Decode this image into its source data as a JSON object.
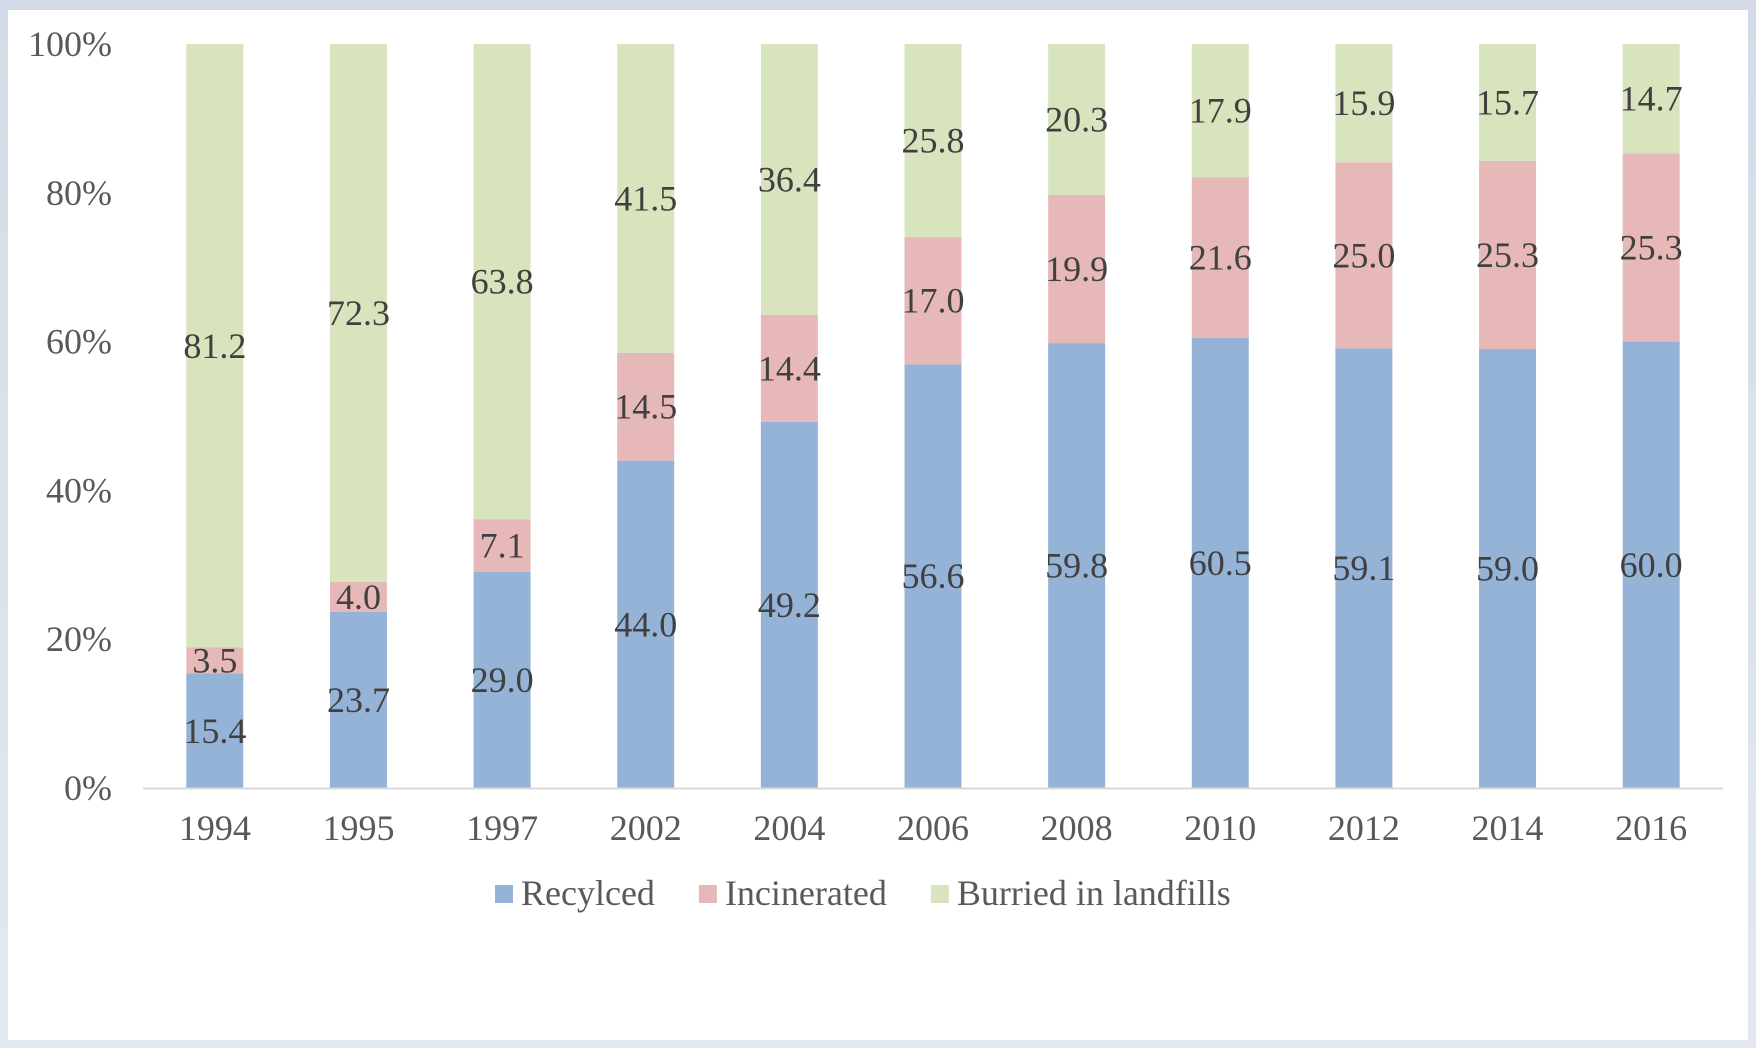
{
  "chart_data": {
    "type": "bar",
    "stacked": true,
    "percent_stacked": true,
    "title": "",
    "xlabel": "",
    "ylabel": "",
    "categories": [
      "1994",
      "1995",
      "1997",
      "2002",
      "2004",
      "2006",
      "2008",
      "2010",
      "2012",
      "2014",
      "2016"
    ],
    "series": [
      {
        "name": "Recylced",
        "color": "#95b3d7",
        "values": [
          15.4,
          23.7,
          29.0,
          44.0,
          49.2,
          56.6,
          59.8,
          60.5,
          59.1,
          59.0,
          60.0
        ]
      },
      {
        "name": "Incinerated",
        "color": "#e6b9b8",
        "values": [
          3.5,
          4.0,
          7.1,
          14.5,
          14.4,
          17.0,
          19.9,
          21.6,
          25.0,
          25.3,
          25.3
        ]
      },
      {
        "name": "Burried in landfills",
        "color": "#d7e4bd",
        "values": [
          81.2,
          72.3,
          63.8,
          41.5,
          36.4,
          25.8,
          20.3,
          17.9,
          15.9,
          15.7,
          14.7
        ]
      }
    ],
    "y_ticks": [
      "0%",
      "20%",
      "40%",
      "60%",
      "80%",
      "100%"
    ],
    "ylim": [
      0,
      100
    ],
    "data_labels": true,
    "label_decimals": 1,
    "grid": false,
    "legend_position": "bottom"
  }
}
